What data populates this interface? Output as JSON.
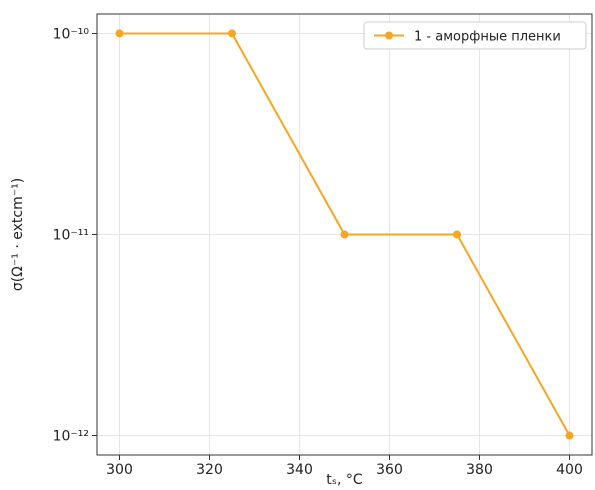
{
  "chart_data": {
    "type": "line",
    "x": [
      300,
      325,
      350,
      375,
      400
    ],
    "series": [
      {
        "name": "1 - аморфные пленки",
        "values": [
          1e-10,
          1e-10,
          1e-11,
          1e-11,
          1e-12
        ],
        "color": "#f5a623"
      }
    ],
    "xlabel": "tₛ, °C",
    "ylabel": "σ(Ω⁻¹ · extcm⁻¹)",
    "xlim": [
      295,
      405
    ],
    "ylim": [
      8e-13,
      1.25e-10
    ],
    "yscale": "log",
    "xticks": [
      300,
      320,
      340,
      360,
      380,
      400
    ],
    "xtick_labels": [
      "300",
      "320",
      "340",
      "360",
      "380",
      "400"
    ],
    "yticks": [
      1e-12,
      1e-11,
      1e-10
    ],
    "ytick_labels": [
      "10⁻¹²",
      "10⁻¹¹",
      "10⁻¹⁰"
    ],
    "grid": true,
    "legend_position": "top-right"
  }
}
